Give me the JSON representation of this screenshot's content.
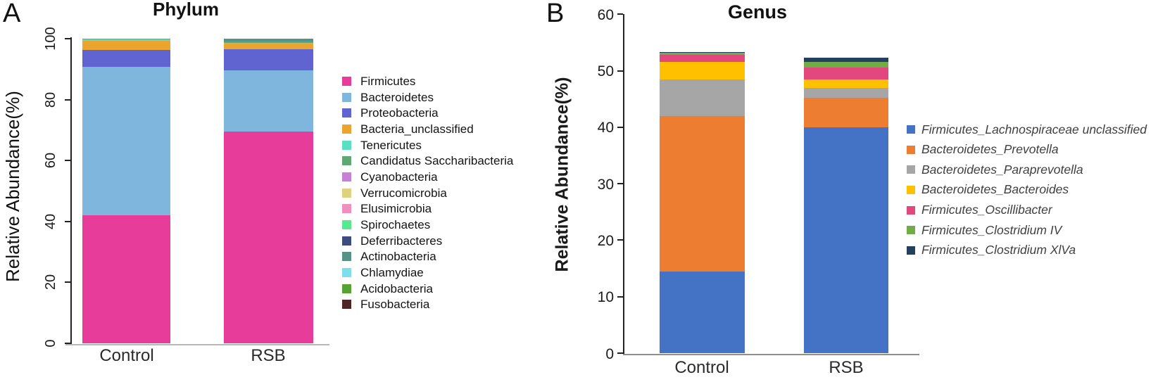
{
  "figure": {
    "background": "#ffffff",
    "panels": [
      {
        "label": "A",
        "title": "Phylum"
      },
      {
        "label": "B",
        "title": "Genus"
      }
    ]
  },
  "chart_data": [
    {
      "id": "phylum",
      "panel_label": "A",
      "type": "bar",
      "stacked": true,
      "title": "Phylum",
      "xlabel": "",
      "ylabel": "Relative Abundance(%)",
      "categories": [
        "Control",
        "RSB"
      ],
      "ylim": [
        0,
        100
      ],
      "yticks": [
        0,
        20,
        40,
        60,
        80,
        100
      ],
      "ytick_label_rotation": 90,
      "grid": false,
      "legend_position": "right",
      "series": [
        {
          "name": "Firmicutes",
          "color": "#E73C9A",
          "values": [
            42.0,
            69.5
          ]
        },
        {
          "name": "Bacteroidetes",
          "color": "#7EB6DE",
          "values": [
            48.8,
            20.1
          ]
        },
        {
          "name": "Proteobacteria",
          "color": "#5F64D0",
          "values": [
            5.6,
            6.9
          ]
        },
        {
          "name": "Bacteria_unclassified",
          "color": "#EBA52F",
          "values": [
            2.8,
            1.9
          ]
        },
        {
          "name": "Tenericutes",
          "color": "#5CDEC3",
          "values": [
            0.6,
            0.2
          ]
        },
        {
          "name": "Candidatus Saccharibacteria",
          "color": "#5FA873",
          "values": [
            0.2,
            0.5
          ]
        },
        {
          "name": "Cyanobacteria",
          "color": "#C77FD8",
          "values": [
            0,
            0
          ]
        },
        {
          "name": "Verrucomicrobia",
          "color": "#DDD27E",
          "values": [
            0,
            0
          ]
        },
        {
          "name": "Elusimicrobia",
          "color": "#F08FBE",
          "values": [
            0,
            0
          ]
        },
        {
          "name": "Spirochaetes",
          "color": "#58E88D",
          "values": [
            0,
            0
          ]
        },
        {
          "name": "Deferribacteres",
          "color": "#3E4C7D",
          "values": [
            0,
            0
          ]
        },
        {
          "name": "Actinobacteria",
          "color": "#579287",
          "values": [
            0,
            0.9
          ]
        },
        {
          "name": "Chlamydiae",
          "color": "#7FDEEE",
          "values": [
            0,
            0
          ]
        },
        {
          "name": "Acidobacteria",
          "color": "#57A233",
          "values": [
            0,
            0
          ]
        },
        {
          "name": "Fusobacteria",
          "color": "#4F2424",
          "values": [
            0,
            0
          ]
        }
      ]
    },
    {
      "id": "genus",
      "panel_label": "B",
      "type": "bar",
      "stacked": true,
      "title": "Genus",
      "xlabel": "",
      "ylabel": "Relative Abundance(%)",
      "categories": [
        "Control",
        "RSB"
      ],
      "ylim": [
        0,
        60
      ],
      "yticks": [
        0,
        10,
        20,
        30,
        40,
        50,
        60
      ],
      "ytick_label_rotation": 0,
      "grid": false,
      "legend_position": "right",
      "legend_italic": true,
      "series": [
        {
          "name": "Firmicutes_Lachnospiraceae unclassified",
          "color": "#4472C4",
          "values": [
            14.4,
            40.0
          ]
        },
        {
          "name": "Bacteroidetes_Prevotella",
          "color": "#ED7D31",
          "values": [
            27.6,
            5.2
          ]
        },
        {
          "name": "Bacteroidetes_Paraprevotella",
          "color": "#A6A6A6",
          "values": [
            6.5,
            1.7
          ]
        },
        {
          "name": "Bacteroidetes_Bacteroides",
          "color": "#FFC000",
          "values": [
            3.0,
            1.5
          ]
        },
        {
          "name": "Firmicutes_Oscillibacter",
          "color": "#E2477E",
          "values": [
            1.3,
            2.1
          ]
        },
        {
          "name": "Firmicutes_Clostridium IV",
          "color": "#70AD47",
          "values": [
            0.35,
            1.1
          ]
        },
        {
          "name": "Firmicutes_Clostridium XlVa",
          "color": "#23405F",
          "values": [
            0.15,
            0.7
          ]
        }
      ]
    }
  ]
}
